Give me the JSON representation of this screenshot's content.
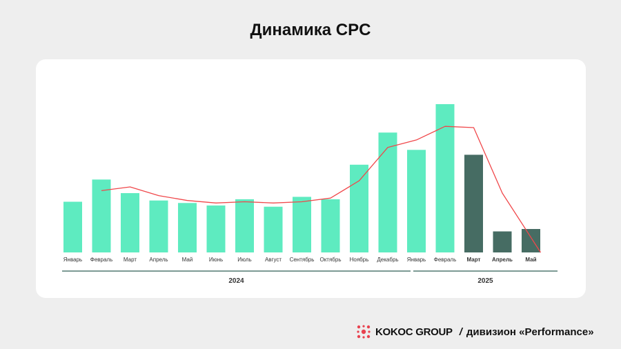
{
  "title": "Динамика CPC",
  "footer": {
    "brand": "KOKOC GROUP",
    "slash": "/",
    "division": "дивизион «Performance»",
    "logo_icon": "kokoc-logo-icon",
    "logo_color": "#e8424f"
  },
  "chart_data": {
    "type": "bar",
    "categories": [
      "Январь",
      "Февраль",
      "Март",
      "Апрель",
      "Май",
      "Июнь",
      "Июль",
      "Август",
      "Сентябрь",
      "Октябрь",
      "Ноябрь",
      "Декабрь",
      "Январь",
      "Февраль",
      "Март",
      "Апрель",
      "Май"
    ],
    "values": [
      41,
      59,
      48,
      42,
      40,
      38,
      43,
      37,
      45,
      43,
      71,
      97,
      83,
      120,
      79,
      17,
      19
    ],
    "line_values": [
      null,
      50,
      53,
      46,
      42,
      40,
      41,
      40,
      41,
      44,
      58,
      85,
      91,
      102,
      101,
      48,
      0
    ],
    "ylim": [
      0,
      125
    ],
    "bar_colors": [
      "#5eebc0",
      "#5eebc0",
      "#5eebc0",
      "#5eebc0",
      "#5eebc0",
      "#5eebc0",
      "#5eebc0",
      "#5eebc0",
      "#5eebc0",
      "#5eebc0",
      "#5eebc0",
      "#5eebc0",
      "#5eebc0",
      "#5eebc0",
      "#466c63",
      "#466c63",
      "#466c63"
    ],
    "bold_labels": [
      false,
      false,
      false,
      false,
      false,
      false,
      false,
      false,
      false,
      false,
      false,
      false,
      false,
      false,
      true,
      true,
      true
    ],
    "line_color": "#f0474a",
    "groups": [
      {
        "label": "2024",
        "from": 0,
        "to": 11
      },
      {
        "label": "2025",
        "from": 12,
        "to": 16
      }
    ],
    "group_line_color": "#2e5e55",
    "grid": false,
    "legend": "none"
  }
}
